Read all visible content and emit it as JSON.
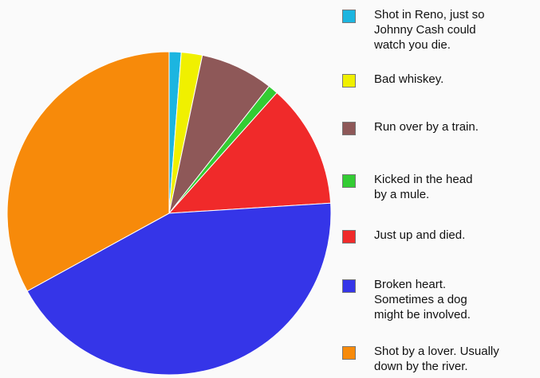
{
  "chart_data": {
    "type": "pie",
    "title": "",
    "start_angle_deg": 0,
    "direction": "clockwise",
    "legend_position": "right",
    "slices": [
      {
        "label": "Shot in Reno, just so\nJohnny Cash could\nwatch you die.",
        "value": 1.2,
        "color": "#1CB5E0"
      },
      {
        "label": "Bad whiskey.",
        "value": 2.1,
        "color": "#F0F000"
      },
      {
        "label": "Run over by a train.",
        "value": 7.3,
        "color": "#8E5858"
      },
      {
        "label": "Kicked in the head\nby a mule.",
        "value": 1.0,
        "color": "#33CC33"
      },
      {
        "label": "Just up and died.",
        "value": 12.4,
        "color": "#F02A2A"
      },
      {
        "label": "Broken heart.\nSometimes a dog\nmight be involved.",
        "value": 43.0,
        "color": "#3535E8"
      },
      {
        "label": "Shot by a lover. Usually\ndown by the river.",
        "value": 33.0,
        "color": "#F78A0A"
      }
    ]
  }
}
